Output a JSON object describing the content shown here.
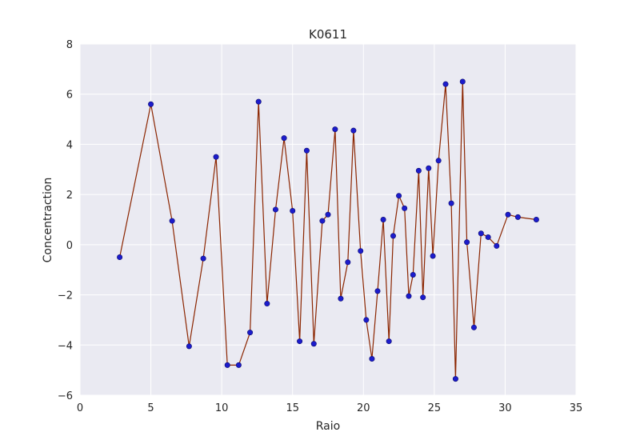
{
  "chart_data": {
    "type": "line",
    "title": "K0611",
    "xlabel": "Raio",
    "ylabel": "Concentraction",
    "xlim": [
      0,
      35
    ],
    "ylim": [
      -6,
      8
    ],
    "xticks": [
      0,
      5,
      10,
      15,
      20,
      25,
      30,
      35
    ],
    "yticks": [
      -6,
      -4,
      -2,
      0,
      2,
      4,
      6,
      8
    ],
    "xtick_labels": [
      "0",
      "5",
      "10",
      "15",
      "20",
      "25",
      "30",
      "35"
    ],
    "ytick_labels": [
      "−6",
      "−4",
      "−2",
      "0",
      "2",
      "4",
      "6",
      "8"
    ],
    "grid": true,
    "series": [
      {
        "line_color": "#8b2500",
        "marker_color": "#1c1ccc",
        "x": [
          2.8,
          5.0,
          6.5,
          7.7,
          8.7,
          9.6,
          10.4,
          11.2,
          12.0,
          12.6,
          13.2,
          13.8,
          14.4,
          15.0,
          15.5,
          16.0,
          16.5,
          17.1,
          17.5,
          18.0,
          18.4,
          18.9,
          19.3,
          19.8,
          20.2,
          20.6,
          21.0,
          21.4,
          21.8,
          22.1,
          22.5,
          22.9,
          23.2,
          23.5,
          23.9,
          24.2,
          24.6,
          24.9,
          25.3,
          25.8,
          26.2,
          26.5,
          27.0,
          27.3,
          27.8,
          28.3,
          28.8,
          29.4,
          30.2,
          30.9,
          32.2
        ],
        "y": [
          -0.5,
          5.6,
          0.95,
          -4.05,
          -0.55,
          3.5,
          -4.8,
          -4.8,
          -3.5,
          5.7,
          -2.35,
          1.4,
          4.25,
          1.35,
          -3.85,
          3.75,
          -3.95,
          0.95,
          1.2,
          4.6,
          -2.15,
          -0.7,
          4.55,
          -0.25,
          -3.0,
          -4.55,
          -1.85,
          1.0,
          -3.85,
          0.35,
          1.95,
          1.45,
          -2.05,
          -1.2,
          2.95,
          -2.1,
          3.05,
          -0.45,
          3.35,
          6.4,
          1.65,
          -5.35,
          6.5,
          0.1,
          -3.3,
          0.45,
          0.3,
          -0.05,
          1.2,
          1.1,
          1.0
        ]
      }
    ]
  },
  "colors": {
    "plot_background": "#eaeaf2",
    "grid": "#ffffff",
    "text": "#262626"
  }
}
